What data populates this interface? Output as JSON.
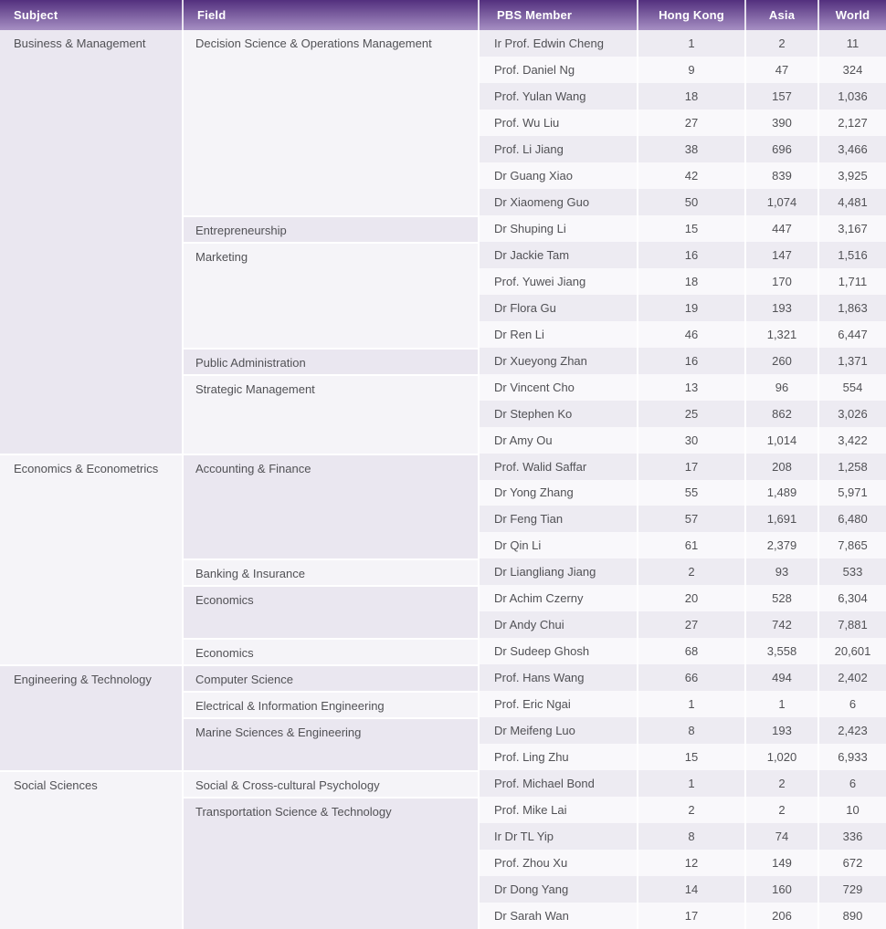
{
  "colors": {
    "header_top": "#53307e",
    "header_bottom": "#a68fc3",
    "header_text": "#ffffff",
    "text": "#515155",
    "cell_dark": "#eae7f0",
    "cell_light": "#f5f4f8",
    "stripe_dark": "#edebf2",
    "stripe_light": "#f9f8fb",
    "separator": "#ffffff"
  },
  "table": {
    "columns": [
      {
        "key": "subject",
        "label": "Subject"
      },
      {
        "key": "field",
        "label": "Field"
      },
      {
        "key": "member",
        "label": "PBS Member"
      },
      {
        "key": "hong_kong",
        "label": "Hong Kong"
      },
      {
        "key": "asia",
        "label": "Asia"
      },
      {
        "key": "world",
        "label": "World"
      }
    ],
    "sections": [
      {
        "subject": "Business & Management",
        "fields": [
          {
            "name": "Decision Science & Operations Management",
            "members": [
              {
                "member": "Ir Prof. Edwin Cheng",
                "hong_kong": "1",
                "asia": "2",
                "world": "11"
              },
              {
                "member": "Prof. Daniel Ng",
                "hong_kong": "9",
                "asia": "47",
                "world": "324"
              },
              {
                "member": "Prof. Yulan Wang",
                "hong_kong": "18",
                "asia": "157",
                "world": "1,036"
              },
              {
                "member": "Prof. Wu Liu",
                "hong_kong": "27",
                "asia": "390",
                "world": "2,127"
              },
              {
                "member": "Prof. Li Jiang",
                "hong_kong": "38",
                "asia": "696",
                "world": "3,466"
              },
              {
                "member": "Dr Guang Xiao",
                "hong_kong": "42",
                "asia": "839",
                "world": "3,925"
              },
              {
                "member": "Dr Xiaomeng Guo",
                "hong_kong": "50",
                "asia": "1,074",
                "world": "4,481"
              }
            ]
          },
          {
            "name": "Entrepreneurship",
            "members": [
              {
                "member": "Dr Shuping Li",
                "hong_kong": "15",
                "asia": "447",
                "world": "3,167"
              }
            ]
          },
          {
            "name": "Marketing",
            "members": [
              {
                "member": "Dr Jackie Tam",
                "hong_kong": "16",
                "asia": "147",
                "world": "1,516"
              },
              {
                "member": "Prof. Yuwei Jiang",
                "hong_kong": "18",
                "asia": "170",
                "world": "1,711"
              },
              {
                "member": "Dr Flora Gu",
                "hong_kong": "19",
                "asia": "193",
                "world": "1,863"
              },
              {
                "member": "Dr Ren Li",
                "hong_kong": "46",
                "asia": "1,321",
                "world": "6,447"
              }
            ]
          },
          {
            "name": "Public Administration",
            "members": [
              {
                "member": "Dr Xueyong Zhan",
                "hong_kong": "16",
                "asia": "260",
                "world": "1,371"
              }
            ]
          },
          {
            "name": "Strategic Management",
            "members": [
              {
                "member": "Dr Vincent Cho",
                "hong_kong": "13",
                "asia": "96",
                "world": "554"
              },
              {
                "member": "Dr Stephen Ko",
                "hong_kong": "25",
                "asia": "862",
                "world": "3,026"
              },
              {
                "member": "Dr Amy Ou",
                "hong_kong": "30",
                "asia": "1,014",
                "world": "3,422"
              }
            ]
          }
        ]
      },
      {
        "subject": "Economics & Econometrics",
        "fields": [
          {
            "name": "Accounting & Finance",
            "members": [
              {
                "member": "Prof. Walid Saffar",
                "hong_kong": "17",
                "asia": "208",
                "world": "1,258"
              },
              {
                "member": "Dr Yong Zhang",
                "hong_kong": "55",
                "asia": "1,489",
                "world": "5,971"
              },
              {
                "member": "Dr Feng Tian",
                "hong_kong": "57",
                "asia": "1,691",
                "world": "6,480"
              },
              {
                "member": "Dr Qin Li",
                "hong_kong": "61",
                "asia": "2,379",
                "world": "7,865"
              }
            ]
          },
          {
            "name": "Banking & Insurance",
            "members": [
              {
                "member": "Dr Liangliang Jiang",
                "hong_kong": "2",
                "asia": "93",
                "world": "533"
              }
            ]
          },
          {
            "name": "Economics",
            "members": [
              {
                "member": "Dr Achim Czerny",
                "hong_kong": "20",
                "asia": "528",
                "world": "6,304"
              },
              {
                "member": "Dr Andy Chui",
                "hong_kong": "27",
                "asia": "742",
                "world": "7,881"
              }
            ]
          },
          {
            "name": "Economics",
            "members": [
              {
                "member": "Dr Sudeep Ghosh",
                "hong_kong": "68",
                "asia": "3,558",
                "world": "20,601"
              }
            ]
          }
        ]
      },
      {
        "subject": "Engineering & Technology",
        "fields": [
          {
            "name": "Computer Science",
            "members": [
              {
                "member": "Prof. Hans Wang",
                "hong_kong": "66",
                "asia": "494",
                "world": "2,402"
              }
            ]
          },
          {
            "name": "Electrical & Information Engineering",
            "members": [
              {
                "member": "Prof. Eric Ngai",
                "hong_kong": "1",
                "asia": "1",
                "world": "6"
              }
            ]
          },
          {
            "name": "Marine Sciences & Engineering",
            "members": [
              {
                "member": "Dr Meifeng Luo",
                "hong_kong": "8",
                "asia": "193",
                "world": "2,423"
              },
              {
                "member": "Prof. Ling Zhu",
                "hong_kong": "15",
                "asia": "1,020",
                "world": "6,933"
              }
            ]
          }
        ]
      },
      {
        "subject": "Social Sciences",
        "fields": [
          {
            "name": "Social & Cross-cultural Psychology",
            "members": [
              {
                "member": "Prof. Michael Bond",
                "hong_kong": "1",
                "asia": "2",
                "world": "6"
              }
            ]
          },
          {
            "name": "Transportation Science & Technology",
            "members": [
              {
                "member": "Prof. Mike Lai",
                "hong_kong": "2",
                "asia": "2",
                "world": "10"
              },
              {
                "member": "Ir Dr TL Yip",
                "hong_kong": "8",
                "asia": "74",
                "world": "336"
              },
              {
                "member": "Prof. Zhou Xu",
                "hong_kong": "12",
                "asia": "149",
                "world": "672"
              },
              {
                "member": "Dr Dong Yang",
                "hong_kong": "14",
                "asia": "160",
                "world": "729"
              },
              {
                "member": "Dr Sarah Wan",
                "hong_kong": "17",
                "asia": "206",
                "world": "890"
              }
            ]
          }
        ]
      }
    ]
  }
}
